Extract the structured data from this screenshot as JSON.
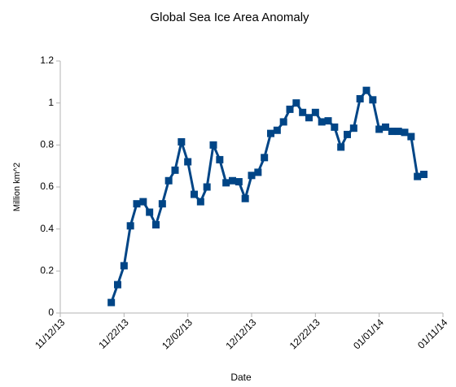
{
  "chart_data": {
    "type": "line",
    "title": "Global Sea Ice Area Anomaly",
    "x_label": "Date",
    "y_label": "Million km^2",
    "x": [
      "11/20/13",
      "11/21/13",
      "11/22/13",
      "11/23/13",
      "11/24/13",
      "11/25/13",
      "11/26/13",
      "11/27/13",
      "11/28/13",
      "11/29/13",
      "11/30/13",
      "12/01/13",
      "12/02/13",
      "12/03/13",
      "12/04/13",
      "12/05/13",
      "12/06/13",
      "12/07/13",
      "12/08/13",
      "12/09/13",
      "12/10/13",
      "12/11/13",
      "12/12/13",
      "12/13/13",
      "12/14/13",
      "12/15/13",
      "12/16/13",
      "12/17/13",
      "12/18/13",
      "12/19/13",
      "12/20/13",
      "12/21/13",
      "12/22/13",
      "12/23/13",
      "12/24/13",
      "12/25/13",
      "12/26/13",
      "12/27/13",
      "12/28/13",
      "12/29/13",
      "12/30/13",
      "12/31/13",
      "01/01/14",
      "01/02/14",
      "01/03/14",
      "01/04/14",
      "01/05/14",
      "01/06/14",
      "01/07/14",
      "01/08/14"
    ],
    "series": [
      {
        "name": "Global Sea Ice Area Anomaly",
        "color": "#004586",
        "values": [
          0.05,
          0.135,
          0.225,
          0.415,
          0.52,
          0.53,
          0.48,
          0.42,
          0.52,
          0.63,
          0.68,
          0.815,
          0.72,
          0.565,
          0.53,
          0.6,
          0.8,
          0.73,
          0.62,
          0.63,
          0.625,
          0.545,
          0.655,
          0.67,
          0.74,
          0.855,
          0.87,
          0.91,
          0.97,
          1.0,
          0.955,
          0.93,
          0.955,
          0.91,
          0.915,
          0.885,
          0.79,
          0.85,
          0.88,
          1.02,
          1.06,
          1.015,
          0.875,
          0.885,
          0.865,
          0.865,
          0.86,
          0.84,
          0.65,
          0.66
        ]
      }
    ],
    "xlim": [
      "11/12/13",
      "01/11/14"
    ],
    "xticks": [
      "11/12/13",
      "11/22/13",
      "12/02/13",
      "12/12/13",
      "12/22/13",
      "01/01/14",
      "01/11/14"
    ],
    "ylim": [
      0,
      1.2
    ],
    "yticks": [
      0,
      0.2,
      0.4,
      0.6,
      0.8,
      1,
      1.2
    ],
    "grid": false
  }
}
